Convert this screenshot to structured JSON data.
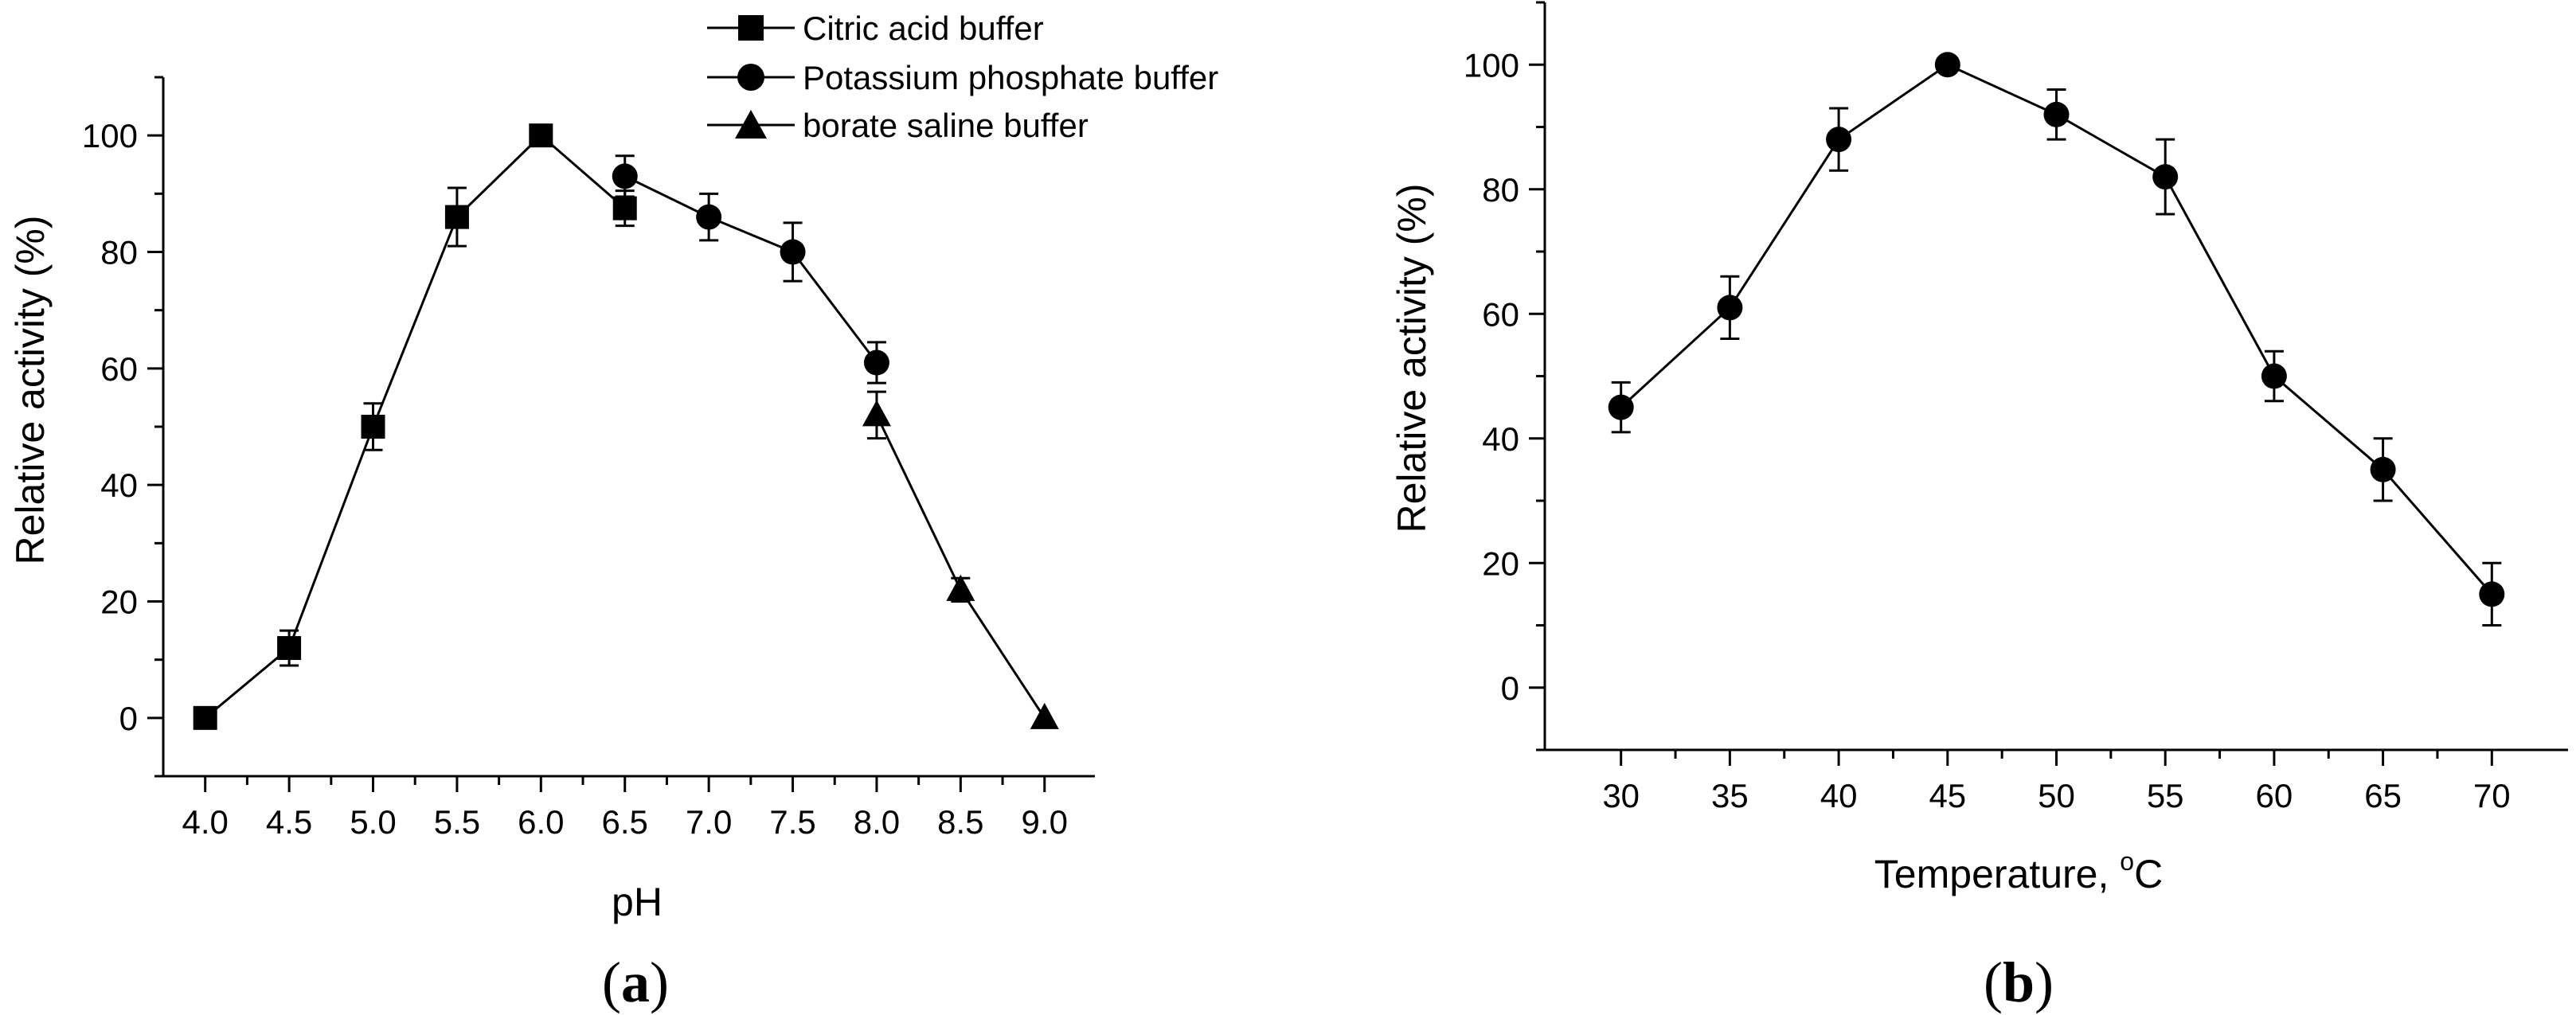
{
  "chart_data": [
    {
      "type": "line",
      "panel": "(a)",
      "panel_parts": [
        "(",
        "a",
        ")"
      ],
      "title": "",
      "xlabel": "pH",
      "ylabel": "Relative activity (%)",
      "xlim": [
        3.75,
        9.3
      ],
      "ylim": [
        -10,
        110
      ],
      "xticks": [
        4.0,
        4.5,
        5.0,
        5.5,
        6.0,
        6.5,
        7.0,
        7.5,
        8.0,
        8.5,
        9.0
      ],
      "xtick_labels": [
        "4.0",
        "4.5",
        "5.0",
        "5.5",
        "6.0",
        "6.5",
        "7.0",
        "7.5",
        "8.0",
        "8.5",
        "9.0"
      ],
      "yticks": [
        0,
        20,
        40,
        60,
        80,
        100
      ],
      "ytick_labels": [
        "0",
        "20",
        "40",
        "60",
        "80",
        "100"
      ],
      "legend_position": "top-center",
      "series": [
        {
          "name": "Citric acid buffer",
          "marker": "square",
          "x": [
            4.0,
            4.5,
            5.0,
            5.5,
            6.0,
            6.5
          ],
          "y": [
            0,
            12,
            50,
            86,
            100,
            87.5
          ],
          "err": [
            0,
            3,
            4,
            5,
            0,
            3
          ]
        },
        {
          "name": "Potassium phosphate buffer",
          "marker": "circle",
          "x": [
            6.5,
            7.0,
            7.5,
            8.0
          ],
          "y": [
            93,
            86,
            80,
            61
          ],
          "err": [
            3.5,
            4,
            5,
            3.5
          ]
        },
        {
          "name": "borate saline buffer",
          "marker": "triangle",
          "x": [
            8.0,
            8.5,
            9.0
          ],
          "y": [
            52,
            22,
            0
          ],
          "err": [
            4,
            2,
            0
          ]
        }
      ]
    },
    {
      "type": "line",
      "panel": "(b)",
      "panel_parts": [
        "(",
        "b",
        ")"
      ],
      "title": "",
      "xlabel": "Temperature, °C",
      "xlabel_parts": [
        "Temperature, ",
        "o",
        "C"
      ],
      "ylabel": "Relative activity (%)",
      "xlim": [
        26.5,
        73.5
      ],
      "ylim": [
        -10,
        110
      ],
      "xticks": [
        30,
        35,
        40,
        45,
        50,
        55,
        60,
        65,
        70
      ],
      "xtick_labels": [
        "30",
        "35",
        "40",
        "45",
        "50",
        "55",
        "60",
        "65",
        "70"
      ],
      "yticks": [
        0,
        20,
        40,
        60,
        80,
        100
      ],
      "ytick_labels": [
        "0",
        "20",
        "40",
        "60",
        "80",
        "100"
      ],
      "series": [
        {
          "name": "Relative activity",
          "marker": "circle",
          "x": [
            30,
            35,
            40,
            45,
            50,
            55,
            60,
            65,
            70
          ],
          "y": [
            45,
            61,
            88,
            100,
            92,
            82,
            50,
            35,
            15
          ],
          "err": [
            4,
            5,
            5,
            0,
            4,
            6,
            4,
            5,
            5
          ]
        }
      ]
    }
  ]
}
